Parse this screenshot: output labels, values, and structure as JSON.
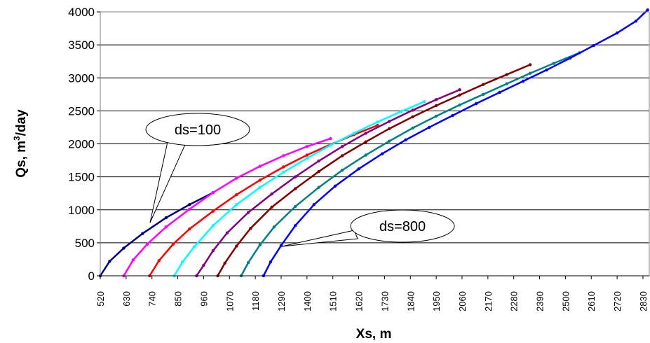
{
  "chart_data": {
    "type": "line",
    "xlabel": "Xs, m",
    "ylabel": "Qs, m3/day",
    "ylabel_parts": {
      "base": "Qs, m",
      "sup": "3",
      "tail": "/day"
    },
    "xlim": [
      520,
      2860
    ],
    "ylim": [
      0,
      4000
    ],
    "x_ticks": [
      "520",
      "630",
      "740",
      "850",
      "960",
      "1070",
      "1180",
      "1290",
      "1400",
      "1510",
      "1620",
      "1730",
      "1840",
      "1950",
      "2060",
      "2170",
      "2280",
      "2390",
      "2500",
      "2610",
      "2720",
      "2830"
    ],
    "y_ticks": [
      "0",
      "500",
      "1000",
      "1500",
      "2000",
      "2500",
      "3000",
      "3500",
      "4000"
    ],
    "grid": "horizontal",
    "annotations": [
      {
        "text": "ds=100"
      },
      {
        "text": "ds=800"
      }
    ],
    "series": [
      {
        "color": "#000080",
        "x": [
          520,
          560,
          620,
          700,
          800,
          900,
          1000
        ],
        "y": [
          0,
          220,
          420,
          640,
          880,
          1080,
          1260
        ]
      },
      {
        "color": "#ff00ff",
        "x": [
          620,
          660,
          720,
          800,
          900,
          1000,
          1100,
          1200,
          1300,
          1400,
          1500
        ],
        "y": [
          0,
          240,
          480,
          740,
          1010,
          1260,
          1480,
          1660,
          1820,
          1960,
          2080
        ]
      },
      {
        "color": "#ff0000",
        "x": [
          730,
          770,
          830,
          900,
          1000,
          1100,
          1200,
          1300,
          1400,
          1500,
          1600,
          1700
        ],
        "y": [
          0,
          230,
          480,
          710,
          980,
          1230,
          1450,
          1650,
          1830,
          1990,
          2140,
          2280
        ]
      },
      {
        "color": "#00ffff",
        "x": [
          835,
          870,
          920,
          1000,
          1100,
          1200,
          1300,
          1400,
          1500,
          1600,
          1700,
          1800,
          1900
        ],
        "y": [
          0,
          210,
          440,
          760,
          1080,
          1340,
          1570,
          1780,
          1980,
          2160,
          2330,
          2490,
          2640
        ]
      },
      {
        "color": "#800080",
        "x": [
          930,
          960,
          1000,
          1060,
          1150,
          1250,
          1350,
          1450,
          1550,
          1650,
          1750,
          1850,
          1950,
          2050
        ],
        "y": [
          0,
          160,
          380,
          650,
          960,
          1240,
          1500,
          1740,
          1960,
          2160,
          2340,
          2510,
          2670,
          2820
        ]
      },
      {
        "color": "#800000",
        "x": [
          1020,
          1050,
          1100,
          1160,
          1250,
          1350,
          1450,
          1550,
          1650,
          1750,
          1850,
          1950,
          2050,
          2150,
          2250,
          2350
        ],
        "y": [
          0,
          190,
          450,
          720,
          1040,
          1320,
          1580,
          1820,
          2030,
          2230,
          2410,
          2580,
          2740,
          2900,
          3050,
          3200
        ]
      },
      {
        "color": "#008080",
        "x": [
          1120,
          1150,
          1200,
          1260,
          1350,
          1450,
          1550,
          1650,
          1750,
          1850,
          1950,
          2050,
          2150,
          2250,
          2350,
          2450,
          2560
        ],
        "y": [
          0,
          200,
          470,
          740,
          1050,
          1340,
          1600,
          1830,
          2040,
          2240,
          2420,
          2590,
          2750,
          2910,
          3070,
          3220,
          3380
        ]
      },
      {
        "color": "#0000ff",
        "x": [
          1215,
          1245,
          1290,
          1350,
          1430,
          1520,
          1620,
          1720,
          1820,
          1920,
          2020,
          2120,
          2220,
          2320,
          2420,
          2520,
          2620,
          2720,
          2800,
          2850
        ],
        "y": [
          0,
          210,
          460,
          760,
          1080,
          1360,
          1620,
          1850,
          2060,
          2250,
          2430,
          2610,
          2780,
          2950,
          3120,
          3300,
          3490,
          3680,
          3860,
          4030
        ]
      }
    ]
  }
}
